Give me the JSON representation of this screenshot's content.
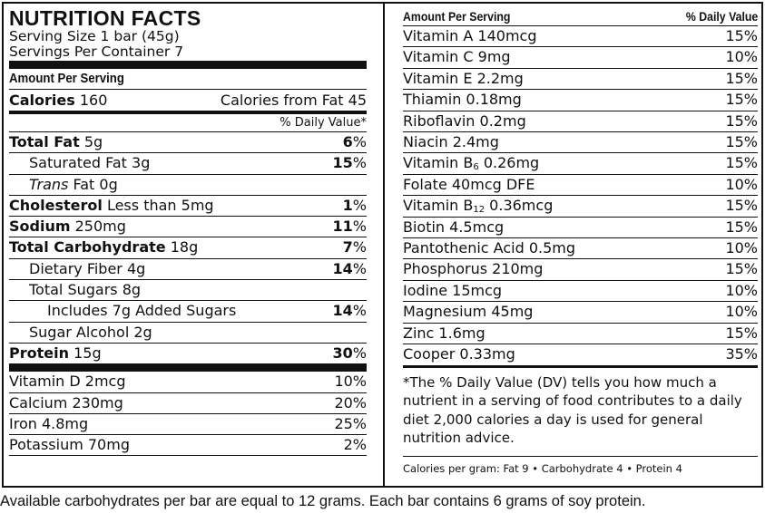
{
  "title": "NUTRITION FACTS",
  "serving_size": "Serving Size 1 bar (45g)",
  "servings_per_container": "Servings Per Container 7",
  "amount_per_serving": "Amount Per Serving",
  "calories": {
    "label": "Calories",
    "value": "160",
    "from_fat": "Calories from Fat 45"
  },
  "dv_header": "% Daily Value*",
  "nutrients": [
    {
      "bold": "Total Fat",
      "rest": "5g",
      "pct": "6",
      "sym": "%"
    },
    {
      "bold": "",
      "rest": "Saturated Fat 3g",
      "pct": "15",
      "sym": "%"
    },
    {
      "italic": "Trans",
      "rest": "Fat 0g",
      "pct": "",
      "sym": ""
    },
    {
      "bold": "Cholesterol",
      "rest": "Less than 5mg",
      "pct": "1",
      "sym": "%"
    },
    {
      "bold": "Sodium",
      "rest": "250mg",
      "pct": "11",
      "sym": "%"
    },
    {
      "bold": "Total Carbohydrate",
      "rest": "18g",
      "pct": "7",
      "sym": "%"
    },
    {
      "bold": "",
      "rest": "Dietary Fiber 4g",
      "pct": "14",
      "sym": "%"
    },
    {
      "bold": "",
      "rest": "Total Sugars 8g",
      "pct": "",
      "sym": ""
    },
    {
      "bold": "",
      "rest": "Includes 7g Added Sugars",
      "pct": "14",
      "sym": "%"
    },
    {
      "bold": "",
      "rest": "Sugar Alcohol 2g",
      "pct": "",
      "sym": ""
    },
    {
      "bold": "Protein",
      "rest": "15g",
      "pct": "30",
      "sym": "%"
    }
  ],
  "left_vitamins": [
    {
      "name": "Vitamin D 2mcg",
      "pct": "10%"
    },
    {
      "name": "Calcium 230mg",
      "pct": "20%"
    },
    {
      "name": "Iron 4.8mg",
      "pct": "25%"
    },
    {
      "name": "Potassium 70mg",
      "pct": "2%"
    }
  ],
  "right_header": {
    "left": "Amount Per Serving",
    "right": "% Daily Value"
  },
  "right_vitamins": [
    {
      "name": "Vitamin A 140mcg",
      "pct": "15%"
    },
    {
      "name": "Vitamin C 9mg",
      "pct": "10%"
    },
    {
      "name": "Vitamin E 2.2mg",
      "pct": "15%"
    },
    {
      "name": "Thiamin 0.18mg",
      "pct": "15%"
    },
    {
      "name": "Riboflavin 0.2mg",
      "pct": "15%"
    },
    {
      "name": "Niacin 2.4mg",
      "pct": "15%"
    },
    {
      "pre": "Vitamin B",
      "sub": "6",
      "post": " 0.26mg",
      "pct": "15%"
    },
    {
      "name": "Folate 40mcg DFE",
      "pct": "10%"
    },
    {
      "pre": "Vitamin B",
      "sub": "12",
      "post": " 0.36mcg",
      "pct": "15%"
    },
    {
      "name": "Biotin 4.5mcg",
      "pct": "15%"
    },
    {
      "name": "Pantothenic Acid 0.5mg",
      "pct": "10%"
    },
    {
      "name": "Phosphorus 210mg",
      "pct": "15%"
    },
    {
      "name": "Iodine 15mcg",
      "pct": "10%"
    },
    {
      "name": "Magnesium 45mg",
      "pct": "10%"
    },
    {
      "name": "Zinc 1.6mg",
      "pct": "15%"
    },
    {
      "name": "Cooper 0.33mg",
      "pct": "35%"
    }
  ],
  "dv_note": "*The % Daily Value (DV) tells you how much a nutrient in a serving of food contributes to a daily diet 2,000 calories a day is used for general nutrition advice.",
  "calories_per_gram": "Calories per gram: Fat 9 • Carbohydrate 4 • Protein 4",
  "footer": "Available carbohydrates per bar are equal to 12 grams. Each bar contains 6 grams of soy protein."
}
